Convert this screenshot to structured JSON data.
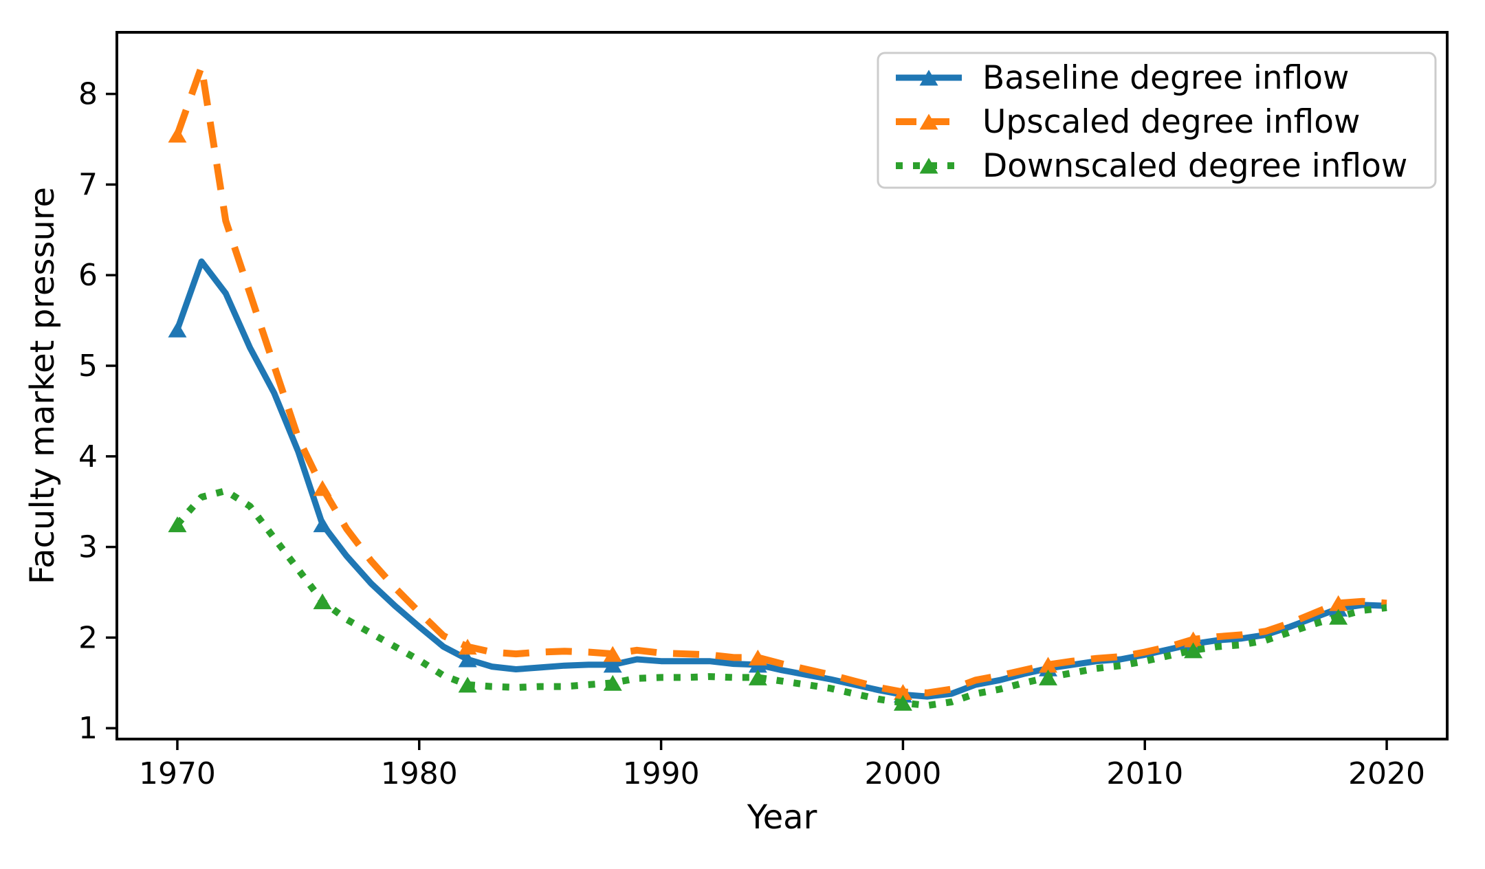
{
  "figure": {
    "background": "#ffffff",
    "text_color": "#000000",
    "spine_color": "#000000",
    "legend_border_color": "#cccccc",
    "legend_background": "#ffffff"
  },
  "chart_data": {
    "type": "line",
    "title": "",
    "xlabel": "Year",
    "ylabel": "Faculty market pressure",
    "grid": false,
    "legend_position": "upper right",
    "marker": "triangle-up",
    "mark_every": 6,
    "xlim": [
      1967.5,
      2022.5
    ],
    "ylim": [
      0.88,
      8.68
    ],
    "x_ticks": [
      1970,
      1980,
      1990,
      2000,
      2010,
      2020
    ],
    "y_ticks": [
      1,
      2,
      3,
      4,
      5,
      6,
      7,
      8
    ],
    "x": [
      1970,
      1971,
      1972,
      1973,
      1974,
      1975,
      1976,
      1977,
      1978,
      1979,
      1980,
      1981,
      1982,
      1983,
      1984,
      1985,
      1986,
      1987,
      1988,
      1989,
      1990,
      1991,
      1992,
      1993,
      1994,
      1995,
      1996,
      1997,
      1998,
      1999,
      2000,
      2001,
      2002,
      2003,
      2004,
      2005,
      2006,
      2007,
      2008,
      2009,
      2010,
      2011,
      2012,
      2013,
      2014,
      2015,
      2016,
      2017,
      2018,
      2019,
      2020
    ],
    "series": [
      {
        "name": "Baseline degree inflow",
        "color": "#1f77b4",
        "style": "solid",
        "values": [
          5.4,
          6.15,
          5.8,
          5.2,
          4.7,
          4.05,
          3.25,
          2.9,
          2.6,
          2.35,
          2.12,
          1.9,
          1.76,
          1.68,
          1.65,
          1.67,
          1.69,
          1.7,
          1.7,
          1.76,
          1.74,
          1.74,
          1.74,
          1.71,
          1.7,
          1.64,
          1.59,
          1.54,
          1.48,
          1.42,
          1.37,
          1.35,
          1.38,
          1.48,
          1.53,
          1.6,
          1.66,
          1.7,
          1.74,
          1.76,
          1.81,
          1.87,
          1.93,
          1.97,
          1.99,
          2.03,
          2.12,
          2.22,
          2.32,
          2.36,
          2.35
        ]
      },
      {
        "name": "Upscaled degree inflow",
        "color": "#ff7f0e",
        "style": "dashed",
        "values": [
          7.55,
          8.3,
          6.6,
          5.8,
          5.0,
          4.2,
          3.65,
          3.2,
          2.85,
          2.55,
          2.28,
          2.02,
          1.9,
          1.84,
          1.82,
          1.84,
          1.85,
          1.84,
          1.82,
          1.86,
          1.83,
          1.82,
          1.81,
          1.78,
          1.78,
          1.71,
          1.65,
          1.59,
          1.52,
          1.45,
          1.4,
          1.39,
          1.43,
          1.53,
          1.58,
          1.64,
          1.7,
          1.74,
          1.77,
          1.79,
          1.84,
          1.9,
          1.98,
          2.01,
          2.03,
          2.07,
          2.16,
          2.27,
          2.38,
          2.4,
          2.38
        ]
      },
      {
        "name": "Downscaled degree inflow",
        "color": "#2ca02c",
        "style": "dotted",
        "values": [
          3.25,
          3.55,
          3.62,
          3.45,
          3.1,
          2.75,
          2.4,
          2.2,
          2.05,
          1.9,
          1.75,
          1.58,
          1.48,
          1.46,
          1.45,
          1.46,
          1.46,
          1.48,
          1.5,
          1.55,
          1.56,
          1.56,
          1.57,
          1.56,
          1.56,
          1.52,
          1.48,
          1.44,
          1.38,
          1.32,
          1.28,
          1.25,
          1.29,
          1.38,
          1.43,
          1.5,
          1.56,
          1.61,
          1.66,
          1.69,
          1.74,
          1.8,
          1.86,
          1.9,
          1.92,
          1.97,
          2.06,
          2.15,
          2.23,
          2.3,
          2.33
        ]
      }
    ]
  }
}
